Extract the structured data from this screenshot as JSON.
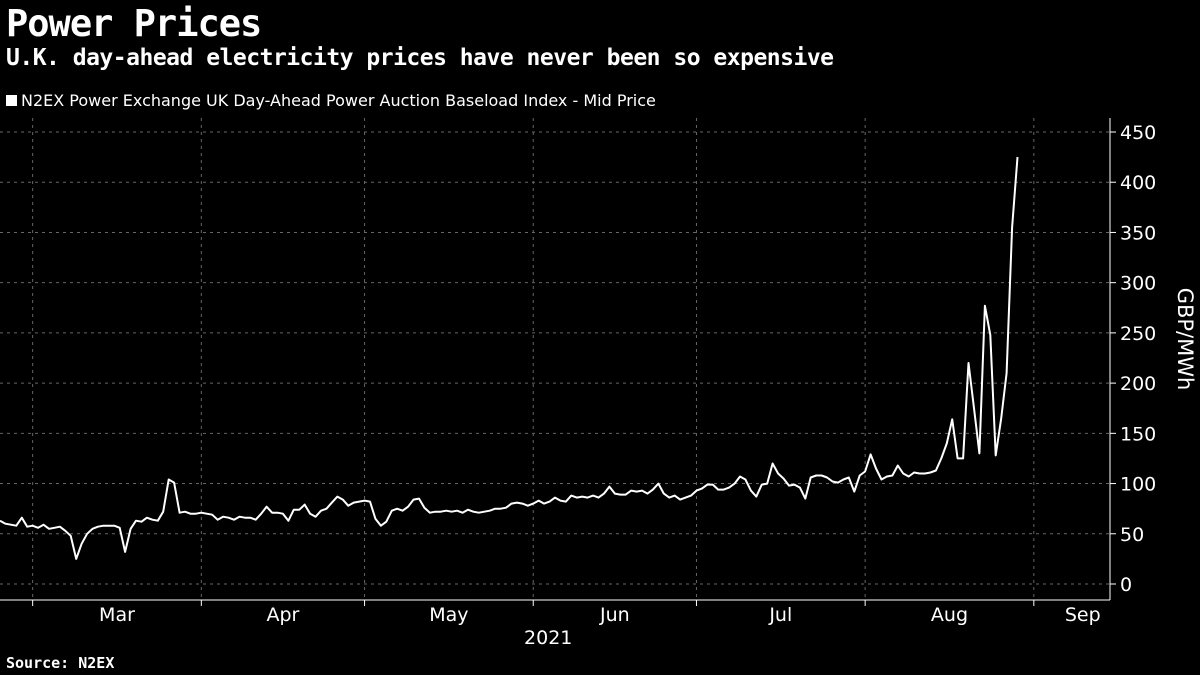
{
  "header": {
    "title": "Power Prices",
    "subtitle": "U.K. day-ahead electricity prices have never been so expensive"
  },
  "source": "Source: N2EX",
  "chart_data": {
    "type": "line",
    "legend": "N2EX Power Exchange UK Day-Ahead Power Auction Baseload Index - Mid Price",
    "ylabel": "GBP/MWh",
    "ylim": [
      0,
      450
    ],
    "yticks": [
      0,
      50,
      100,
      150,
      200,
      250,
      300,
      350,
      400,
      450
    ],
    "x_start": "2021-02-23",
    "x_end": "2021-09-15",
    "year_label": "2021",
    "xticks": [
      {
        "label": "Mar",
        "date": "2021-03-01"
      },
      {
        "label": "Apr",
        "date": "2021-04-01"
      },
      {
        "label": "May",
        "date": "2021-05-01"
      },
      {
        "label": "Jun",
        "date": "2021-06-01"
      },
      {
        "label": "Jul",
        "date": "2021-07-01"
      },
      {
        "label": "Aug",
        "date": "2021-08-01"
      },
      {
        "label": "Sep",
        "date": "2021-09-01"
      }
    ],
    "grid": true,
    "series": [
      {
        "name": "N2EX UK Day-Ahead Baseload Mid Price",
        "color": "#ffffff",
        "start_date": "2021-02-23",
        "values": [
          63,
          60,
          59,
          58,
          66,
          57,
          58,
          56,
          59,
          55,
          56,
          57,
          53,
          48,
          25,
          40,
          50,
          55,
          57,
          58,
          58,
          58,
          56,
          32,
          55,
          63,
          62,
          66,
          64,
          63,
          72,
          104,
          101,
          71,
          72,
          70,
          70,
          71,
          70,
          69,
          64,
          67,
          66,
          64,
          67,
          66,
          66,
          64,
          70,
          77,
          71,
          71,
          70,
          63,
          74,
          74,
          79,
          70,
          67,
          73,
          75,
          81,
          87,
          84,
          78,
          81,
          82,
          83,
          82,
          65,
          58,
          62,
          73,
          75,
          73,
          77,
          84,
          85,
          76,
          71,
          72,
          72,
          73,
          72,
          73,
          71,
          74,
          72,
          71,
          72,
          73,
          75,
          75,
          76,
          80,
          81,
          80,
          78,
          80,
          83,
          80,
          82,
          86,
          83,
          82,
          88,
          86,
          87,
          86,
          88,
          86,
          90,
          97,
          90,
          89,
          89,
          93,
          92,
          93,
          90,
          94,
          100,
          90,
          86,
          88,
          84,
          86,
          88,
          93,
          95,
          99,
          99,
          94,
          94,
          96,
          100,
          107,
          104,
          93,
          87,
          99,
          100,
          120,
          110,
          105,
          98,
          99,
          96,
          85,
          106,
          108,
          108,
          106,
          102,
          101,
          104,
          106,
          92,
          108,
          112,
          129,
          115,
          104,
          107,
          108,
          118,
          110,
          107,
          111,
          110,
          110,
          111,
          113,
          125,
          140,
          164,
          125,
          125,
          220,
          175,
          130,
          277,
          248,
          128,
          165,
          210,
          355,
          425
        ]
      }
    ]
  }
}
